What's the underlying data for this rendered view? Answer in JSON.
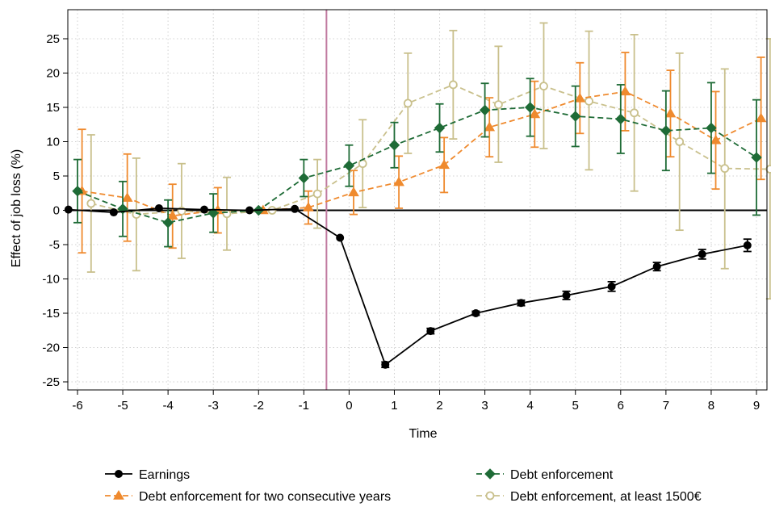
{
  "chart_data": {
    "type": "line",
    "xlabel": "Time",
    "ylabel": "Effect of job loss (%)",
    "xlim": [
      -6,
      9
    ],
    "ylim": [
      -26,
      28
    ],
    "x_ticks": [
      "-6",
      "-5",
      "-4",
      "-3",
      "-2",
      "-1",
      "0",
      "1",
      "2",
      "3",
      "4",
      "5",
      "6",
      "7",
      "8",
      "9"
    ],
    "y_ticks": [
      "25",
      "20",
      "15",
      "10",
      "5",
      "0",
      "-5",
      "-10",
      "-15",
      "-20",
      "-25"
    ],
    "grid": true,
    "event_line_x": -0.5,
    "event_line_color": "#c07aa0",
    "zero_line": 0,
    "legend_position": "bottom",
    "series": [
      {
        "name": "Earnings",
        "color": "#000000",
        "marker": "filled-circle",
        "line": "solid",
        "offset": -0.2,
        "x": [
          -6,
          -5,
          -4,
          -3,
          -2,
          -1,
          0,
          1,
          2,
          3,
          4,
          5,
          6,
          7,
          8,
          9
        ],
        "y": [
          0.1,
          -0.3,
          0.3,
          0.1,
          0.0,
          0.2,
          -4.0,
          -22.5,
          -17.6,
          -15.0,
          -13.5,
          -12.4,
          -11.1,
          -8.2,
          -6.4,
          -5.1
        ],
        "lo": [
          0.1,
          -0.3,
          0.3,
          0.1,
          0.0,
          0.2,
          -4.0,
          -22.9,
          -18.0,
          -15.3,
          -13.9,
          -13.0,
          -11.8,
          -8.8,
          -7.1,
          -6.0
        ],
        "hi": [
          0.1,
          -0.3,
          0.3,
          0.1,
          0.0,
          0.2,
          -4.0,
          -22.1,
          -17.2,
          -14.7,
          -13.1,
          -11.8,
          -10.4,
          -7.6,
          -5.7,
          -4.2
        ]
      },
      {
        "name": "Debt enforcement",
        "color": "#1e6b36",
        "marker": "filled-diamond",
        "line": "dash",
        "offset": 0.0,
        "x": [
          -6,
          -5,
          -4,
          -3,
          -2,
          -1,
          0,
          1,
          2,
          3,
          4,
          5,
          6,
          7,
          8,
          9
        ],
        "y": [
          2.8,
          0.2,
          -1.8,
          -0.4,
          0.0,
          4.7,
          6.5,
          9.5,
          12.0,
          14.6,
          15.0,
          13.7,
          13.3,
          11.6,
          12.0,
          7.7
        ],
        "lo": [
          -1.8,
          -3.8,
          -5.3,
          -3.2,
          0.0,
          2.0,
          3.5,
          6.2,
          8.5,
          10.7,
          10.8,
          9.3,
          8.3,
          5.8,
          5.4,
          -0.7
        ],
        "hi": [
          7.4,
          4.2,
          1.5,
          2.4,
          0.0,
          7.4,
          9.5,
          12.8,
          15.5,
          18.5,
          19.2,
          18.1,
          18.3,
          17.4,
          18.6,
          16.1
        ]
      },
      {
        "name": "Debt enforcement for two consecutive years",
        "color": "#ef8a2e",
        "marker": "filled-triangle",
        "line": "dash",
        "offset": 0.1,
        "x": [
          -6,
          -5,
          -4,
          -3,
          -2,
          -1,
          0,
          1,
          2,
          3,
          4,
          5,
          6,
          7,
          8,
          9
        ],
        "y": [
          2.8,
          1.8,
          -0.8,
          0.0,
          0.0,
          0.4,
          2.6,
          4.1,
          6.6,
          12.1,
          14.0,
          16.3,
          17.3,
          14.1,
          10.2,
          13.4
        ],
        "lo": [
          -6.2,
          -4.5,
          -5.5,
          -3.3,
          0.0,
          -2.0,
          -0.6,
          0.3,
          2.6,
          7.8,
          9.2,
          11.2,
          11.6,
          7.8,
          3.1,
          4.5
        ],
        "hi": [
          11.8,
          8.2,
          3.8,
          3.3,
          0.0,
          2.8,
          5.8,
          7.9,
          10.6,
          16.4,
          18.8,
          21.5,
          23.0,
          20.4,
          17.3,
          22.3
        ]
      },
      {
        "name": "Debt enforcement, at least 1500€",
        "color": "#c9c08c",
        "marker": "hollow-circle",
        "line": "dash",
        "offset": 0.3,
        "x": [
          -6,
          -5,
          -4,
          -3,
          -2,
          -1,
          0,
          1,
          2,
          3,
          4,
          5,
          6,
          7,
          8,
          9
        ],
        "y": [
          1.0,
          -0.6,
          -0.1,
          -0.5,
          0.0,
          2.4,
          6.8,
          15.6,
          18.3,
          15.4,
          18.1,
          15.9,
          14.2,
          10.0,
          6.1,
          6.0
        ],
        "lo": [
          -9.0,
          -8.8,
          -7.0,
          -5.8,
          0.0,
          -2.6,
          0.4,
          8.3,
          10.4,
          7.0,
          9.0,
          5.9,
          2.8,
          -2.9,
          -8.5,
          -12.9
        ],
        "hi": [
          11.0,
          7.6,
          6.8,
          4.8,
          0.0,
          7.4,
          13.2,
          22.9,
          26.2,
          23.9,
          27.3,
          26.1,
          25.6,
          22.9,
          20.6,
          25.0
        ]
      }
    ]
  }
}
